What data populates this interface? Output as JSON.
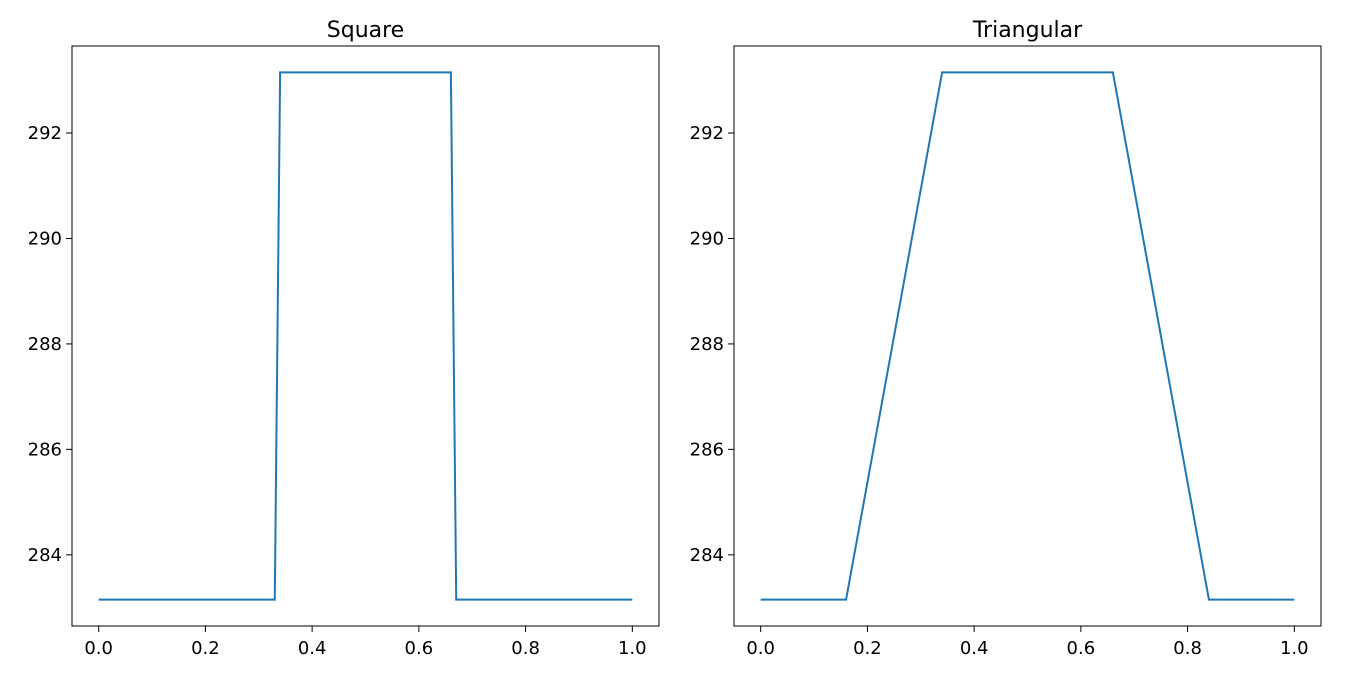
{
  "chart_data": [
    {
      "type": "line",
      "title": "Square",
      "xlabel": "",
      "ylabel": "",
      "xlim": [
        -0.05,
        1.05
      ],
      "ylim": [
        282.65,
        293.65
      ],
      "xticks": [
        0.0,
        0.2,
        0.4,
        0.6,
        0.8,
        1.0
      ],
      "xtick_labels": [
        "0.0",
        "0.2",
        "0.4",
        "0.6",
        "0.8",
        "1.0"
      ],
      "yticks": [
        284,
        286,
        288,
        290,
        292
      ],
      "ytick_labels": [
        "284",
        "286",
        "288",
        "290",
        "292"
      ],
      "grid": false,
      "series": [
        {
          "color": "#1f77b4",
          "x": [
            0.0,
            0.33,
            0.34,
            0.66,
            0.67,
            1.0
          ],
          "y": [
            283.15,
            283.15,
            293.15,
            293.15,
            283.15,
            283.15
          ]
        }
      ]
    },
    {
      "type": "line",
      "title": "Triangular",
      "xlabel": "",
      "ylabel": "",
      "xlim": [
        -0.05,
        1.05
      ],
      "ylim": [
        282.65,
        293.65
      ],
      "xticks": [
        0.0,
        0.2,
        0.4,
        0.6,
        0.8,
        1.0
      ],
      "xtick_labels": [
        "0.0",
        "0.2",
        "0.4",
        "0.6",
        "0.8",
        "1.0"
      ],
      "yticks": [
        284,
        286,
        288,
        290,
        292
      ],
      "ytick_labels": [
        "284",
        "286",
        "288",
        "290",
        "292"
      ],
      "grid": false,
      "series": [
        {
          "color": "#1f77b4",
          "x": [
            0.0,
            0.16,
            0.34,
            0.66,
            0.84,
            1.0
          ],
          "y": [
            283.15,
            283.15,
            293.15,
            293.15,
            283.15,
            283.15
          ]
        }
      ]
    }
  ]
}
